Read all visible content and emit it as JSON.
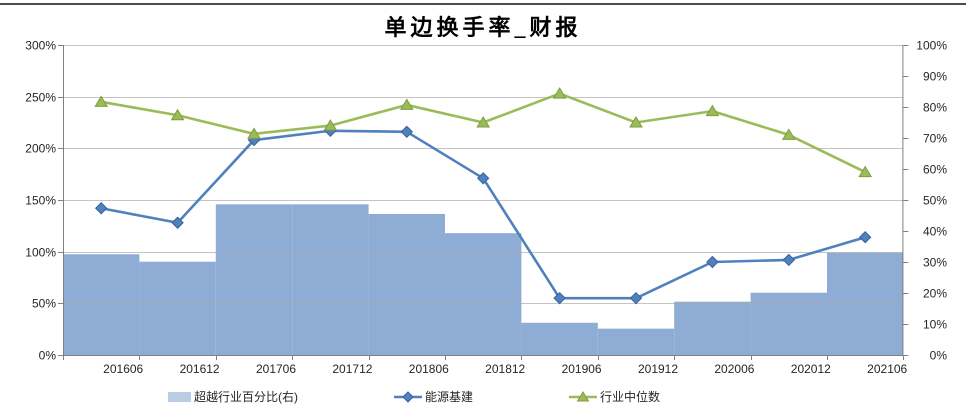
{
  "chart_data": {
    "type": "combo",
    "title": "单边换手率_财报",
    "categories": [
      "201606",
      "201612",
      "201706",
      "201712",
      "201806",
      "201812",
      "201906",
      "201912",
      "202006",
      "202012",
      "202106"
    ],
    "series": [
      {
        "name": "超越行业百分比(右)",
        "type": "bar",
        "axis": "right",
        "color": "#8FACD5",
        "legend_swatch_color": "#B8CCE4",
        "values": [
          32.5,
          30.1,
          48.6,
          48.6,
          45.5,
          39.3,
          10.4,
          8.5,
          17.2,
          20.1,
          33.0
        ]
      },
      {
        "name": "能源基建",
        "type": "line",
        "axis": "left",
        "marker": "diamond",
        "color": "#4F81BD",
        "marker_edge_color": "#38619B",
        "values": [
          142,
          128,
          208,
          217,
          216,
          171,
          55,
          55,
          90,
          92,
          114
        ]
      },
      {
        "name": "行业中位数",
        "type": "line",
        "axis": "left",
        "marker": "triangle",
        "color": "#9BBB59",
        "marker_edge_color": "#7E9D43",
        "values": [
          245,
          232,
          214,
          222,
          242,
          225,
          253,
          225,
          236,
          213,
          177
        ]
      }
    ],
    "left_axis": {
      "min": 0,
      "max": 300,
      "step": 50,
      "tick_labels": [
        "0%",
        "50%",
        "100%",
        "150%",
        "200%",
        "250%",
        "300%"
      ]
    },
    "right_axis": {
      "min": 0,
      "max": 100,
      "step": 10,
      "tick_labels": [
        "0%",
        "10%",
        "20%",
        "30%",
        "40%",
        "50%",
        "60%",
        "70%",
        "80%",
        "90%",
        "100%"
      ]
    },
    "gridlines": true,
    "legend_position": "bottom"
  },
  "colors": {
    "grid": "#A6A6A6",
    "axis": "#808080",
    "text": "#262626",
    "top_border": "#4D4D4D",
    "background": "#FFFFFF"
  }
}
